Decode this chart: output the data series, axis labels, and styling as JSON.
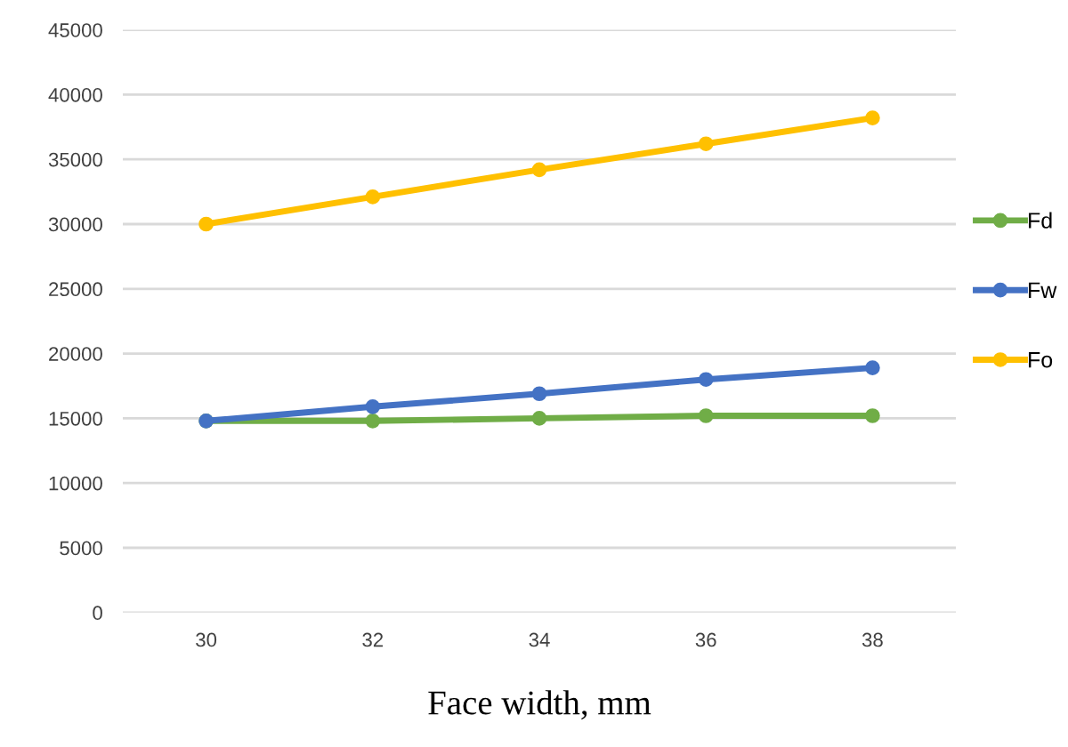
{
  "chart_data": {
    "type": "line",
    "xlabel": "Face width, mm",
    "categories": [
      "30",
      "32",
      "34",
      "36",
      "38"
    ],
    "series": [
      {
        "name": "Fd",
        "color": "#70ad47",
        "values": [
          14800,
          14800,
          15000,
          15200,
          15200
        ]
      },
      {
        "name": "Fw",
        "color": "#4472c4",
        "values": [
          14800,
          15900,
          16900,
          18000,
          18900
        ]
      },
      {
        "name": "Fo",
        "color": "#ffc000",
        "values": [
          30000,
          32100,
          34200,
          36200,
          38200
        ]
      }
    ],
    "ylim": [
      0,
      45000
    ],
    "yticks": [
      0,
      5000,
      10000,
      15000,
      20000,
      25000,
      30000,
      35000,
      40000,
      45000
    ],
    "grid": "y",
    "legend": "right",
    "marker": "circle",
    "line_style": "solid"
  }
}
